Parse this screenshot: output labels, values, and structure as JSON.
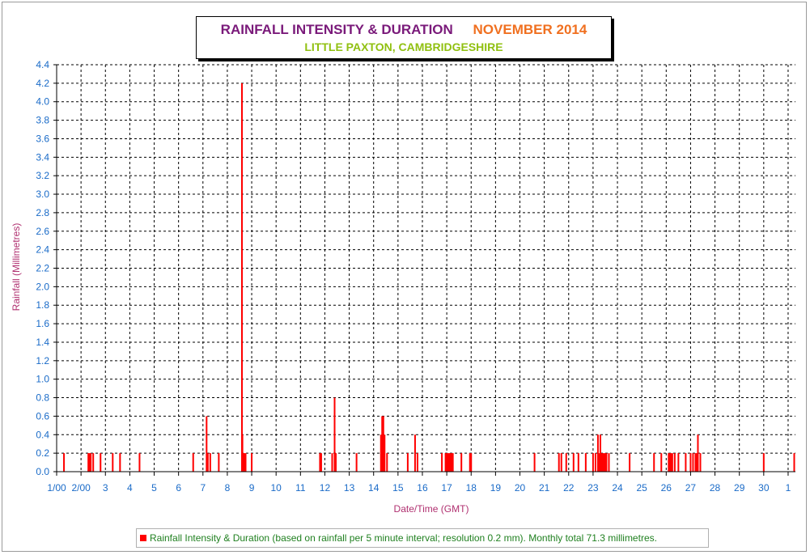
{
  "header": {
    "title": "RAINFALL INTENSITY & DURATION",
    "month": "NOVEMBER 2014",
    "location": "LITTLE PAXTON, CAMBRIDGESHIRE"
  },
  "legend": {
    "label": "Rainfall Intensity & Duration (based on rainfall per 5 minute interval; resolution 0.2 mm). Monthly total 71.3 millimetres."
  },
  "colors": {
    "bars": "#ff0000",
    "title_left": "#7a1a7a",
    "title_right": "#f07020",
    "subtitle": "#90c010",
    "axis_text": "#1a6bc8",
    "axis_label": "#b03070",
    "legend_text": "#208020"
  },
  "chart_data": {
    "type": "bar",
    "title": "RAINFALL INTENSITY & DURATION",
    "subtitle": "LITTLE PAXTON, CAMBRIDGESHIRE",
    "xlabel": "Date/Time (GMT)",
    "ylabel": "Rainfall (Millimetres)",
    "ylim": [
      0,
      4.4
    ],
    "xlim": [
      1,
      31.3
    ],
    "grid": true,
    "legend_position": "bottom",
    "y_ticks": [
      "0.0",
      "0.2",
      "0.4",
      "0.6",
      "0.8",
      "1.0",
      "1.2",
      "1.4",
      "1.6",
      "1.8",
      "2.0",
      "2.2",
      "2.4",
      "2.6",
      "2.8",
      "3.0",
      "3.2",
      "3.4",
      "3.6",
      "3.8",
      "4.0",
      "4.2",
      "4.4"
    ],
    "x_ticks": [
      "1/00",
      "2/00",
      "3",
      "4",
      "5",
      "6",
      "7",
      "8",
      "9",
      "10",
      "11",
      "12",
      "13",
      "14",
      "15",
      "16",
      "17",
      "18",
      "19",
      "20",
      "21",
      "22",
      "23",
      "24",
      "25",
      "26",
      "27",
      "28",
      "29",
      "30",
      "1"
    ],
    "series": [
      {
        "name": "Rainfall Intensity & Duration (based on rainfall per 5 minute interval; resolution 0.2 mm). Monthly total 71.3 millimetres.",
        "x": [
          1.3,
          2.3,
          2.35,
          2.4,
          2.5,
          2.8,
          3.3,
          3.6,
          4.4,
          6.6,
          7.15,
          7.2,
          7.3,
          7.65,
          8.6,
          8.62,
          8.65,
          8.7,
          8.75,
          9.0,
          11.8,
          11.85,
          12.3,
          12.4,
          12.45,
          13.3,
          14.3,
          14.35,
          14.4,
          14.45,
          14.55,
          15.4,
          15.7,
          15.8,
          16.8,
          16.95,
          17.0,
          17.05,
          17.1,
          17.15,
          17.2,
          17.25,
          17.6,
          17.95,
          18.0,
          20.6,
          21.6,
          21.7,
          21.9,
          22.2,
          22.4,
          22.7,
          23.0,
          23.1,
          23.2,
          23.25,
          23.3,
          23.35,
          23.4,
          23.45,
          23.5,
          23.55,
          23.65,
          24.5,
          25.5,
          25.8,
          26.1,
          26.15,
          26.2,
          26.25,
          26.35,
          26.5,
          26.8,
          27.0,
          27.1,
          27.2,
          27.25,
          27.3,
          27.4,
          30.0,
          31.25
        ],
        "values": [
          0.2,
          0.2,
          0.2,
          0.2,
          0.2,
          0.2,
          0.2,
          0.2,
          0.2,
          0.2,
          0.6,
          0.2,
          0.2,
          0.2,
          4.2,
          0.4,
          0.2,
          0.2,
          0.2,
          0.2,
          0.2,
          0.2,
          0.2,
          0.8,
          0.2,
          0.2,
          0.4,
          0.6,
          0.6,
          0.4,
          0.2,
          0.2,
          0.4,
          0.2,
          0.2,
          0.2,
          0.2,
          0.2,
          0.2,
          0.2,
          0.2,
          0.2,
          0.2,
          0.2,
          0.2,
          0.2,
          0.2,
          0.2,
          0.2,
          0.2,
          0.2,
          0.2,
          0.2,
          0.2,
          0.4,
          0.2,
          0.4,
          0.2,
          0.2,
          0.2,
          0.2,
          0.2,
          0.2,
          0.2,
          0.2,
          0.2,
          0.2,
          0.2,
          0.2,
          0.2,
          0.2,
          0.2,
          0.2,
          0.2,
          0.2,
          0.2,
          0.2,
          0.4,
          0.2,
          0.2,
          0.2
        ]
      }
    ]
  }
}
